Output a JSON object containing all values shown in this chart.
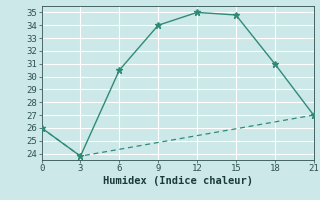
{
  "line1_x": [
    0,
    3,
    6,
    9,
    12,
    15,
    18,
    21
  ],
  "line1_y": [
    26,
    23.8,
    30.5,
    34,
    35,
    34.8,
    31,
    27
  ],
  "line2_x": [
    0,
    3,
    21
  ],
  "line2_y": [
    26,
    23.8,
    27
  ],
  "line_color": "#2e8b78",
  "bg_color": "#cde8e8",
  "grid_color": "#b8d8d8",
  "xlabel": "Humidex (Indice chaleur)",
  "xlim": [
    0,
    21
  ],
  "ylim": [
    23.5,
    35.5
  ],
  "xticks": [
    0,
    3,
    6,
    9,
    12,
    15,
    18,
    21
  ],
  "yticks": [
    24,
    25,
    26,
    27,
    28,
    29,
    30,
    31,
    32,
    33,
    34,
    35
  ],
  "marker": "*",
  "marker_size": 5,
  "tick_fontsize": 6.5,
  "xlabel_fontsize": 7.5
}
